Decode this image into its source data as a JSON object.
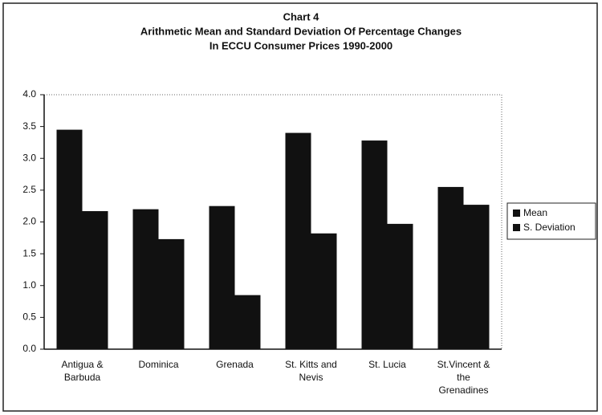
{
  "chart_data": {
    "type": "bar",
    "title": "Chart 4",
    "subtitle": [
      "Arithmetic Mean and Standard Deviation Of Percentage Changes",
      "In ECCU Consumer Prices  1990-2000"
    ],
    "categories": [
      [
        "Antigua &",
        "Barbuda"
      ],
      [
        "Dominica"
      ],
      [
        "Grenada"
      ],
      [
        "St. Kitts and",
        "Nevis"
      ],
      [
        "St. Lucia"
      ],
      [
        "St.Vincent &",
        "the",
        "Grenadines"
      ]
    ],
    "series": [
      {
        "name": "Mean",
        "color": "#111111",
        "values": [
          3.45,
          2.2,
          2.25,
          3.4,
          3.28,
          2.55
        ]
      },
      {
        "name": "S. Deviation",
        "color": "#111111",
        "values": [
          2.17,
          1.73,
          0.85,
          1.82,
          1.97,
          2.27
        ]
      }
    ],
    "ylim": [
      0,
      4
    ],
    "yticks": [
      {
        "value": 0,
        "label": "0.0"
      },
      0.5,
      {
        "value": 1,
        "label": "1.0"
      },
      1.5,
      {
        "value": 2,
        "label": "2.0"
      },
      2.5,
      {
        "value": 3,
        "label": "3.0"
      },
      3.5,
      {
        "value": 4,
        "label": "4.0"
      }
    ],
    "legend": "right"
  }
}
